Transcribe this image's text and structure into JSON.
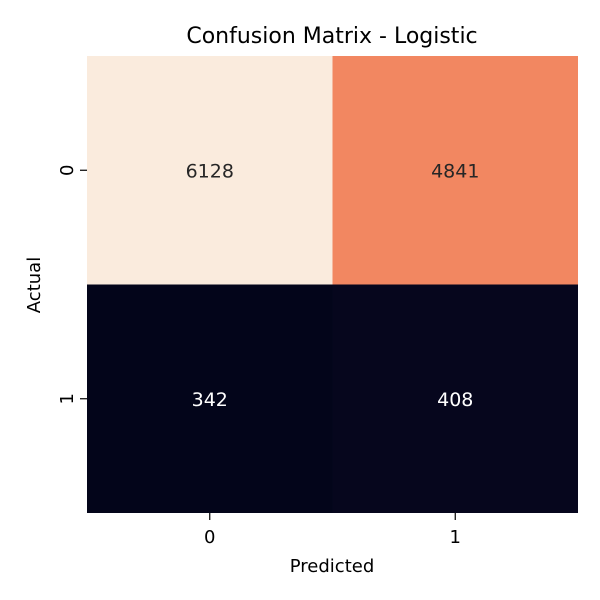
{
  "chart_data": {
    "type": "heatmap",
    "title": "Confusion Matrix - Logistic",
    "xlabel": "Predicted",
    "ylabel": "Actual",
    "x_categories": [
      "0",
      "1"
    ],
    "y_categories": [
      "0",
      "1"
    ],
    "values": [
      [
        6128,
        4841
      ],
      [
        342,
        408
      ]
    ],
    "colorbar": false,
    "colormap": "rocket",
    "grid": false
  }
}
